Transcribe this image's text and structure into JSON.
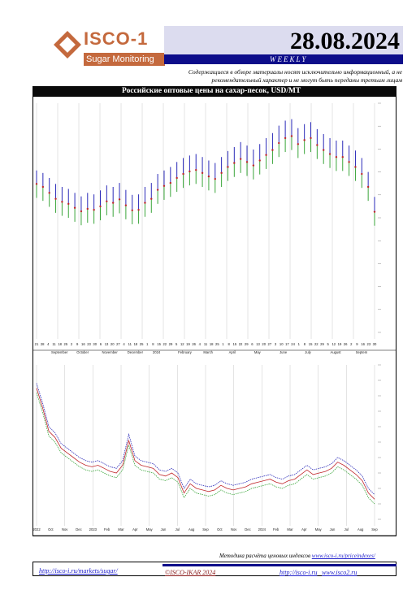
{
  "header": {
    "logo_main": "ISCO-1",
    "logo_sub": "Sugar Monitoring",
    "date": "28.08.2024",
    "frequency": "WEEKLY",
    "disclaimer": "Содержащиеся в обзоре материалы носят исключительно информационный, а не рекомендательный характер и не могут быть переданы третьим лицам"
  },
  "title": "Российские оптовые цены на сахар-песок, USD/MT",
  "footer": {
    "note_prefix": "Методика расчёта ценовых индексов",
    "note_link": "www.isco-i.ru/priceindexes/",
    "link1": "http://isco-i.ru/markets/sugar/",
    "copyright": "©ISCO-IKAR 2024",
    "link2": "http://isco-i.ru",
    "link3": "www.isco2.ru"
  },
  "colors": {
    "high": "#2a2ab8",
    "close": "#c0262a",
    "low": "#3aa53a",
    "header_blue": "#0d0d8a",
    "logo_orange": "#c4693d"
  },
  "chart_data": [
    {
      "type": "line",
      "title": "",
      "x_labels": [
        "21",
        "28",
        "4",
        "11",
        "18",
        "25",
        "2",
        "9",
        "16",
        "23",
        "30",
        "6",
        "13",
        "20",
        "27",
        "4",
        "11",
        "18",
        "25",
        "1",
        "8",
        "15",
        "22",
        "29",
        "5",
        "12",
        "19",
        "26",
        "4",
        "11",
        "18",
        "25",
        "1",
        "8",
        "15",
        "22",
        "29",
        "6",
        "13",
        "20",
        "27",
        "3",
        "10",
        "17",
        "24",
        "1",
        "8",
        "15",
        "22",
        "29",
        "5",
        "12",
        "19",
        "26",
        "2",
        "9",
        "16",
        "23",
        "30"
      ],
      "months": [
        "September",
        "October",
        "November",
        "December",
        "2024",
        "February",
        "March",
        "April",
        "May",
        "June",
        "July",
        "August",
        "Septem"
      ],
      "ylim": [
        520,
        980
      ],
      "series": [
        {
          "name": "",
          "values": [
            845,
            840,
            830,
            818,
            812,
            808,
            800,
            793,
            800,
            797,
            805,
            815,
            812,
            820,
            806,
            796,
            797,
            812,
            820,
            838,
            845,
            852,
            862,
            870,
            875,
            878,
            872,
            865,
            860,
            872,
            884,
            892,
            902,
            895,
            887,
            898,
            910,
            920,
            935,
            945,
            948,
            930,
            938,
            942,
            928,
            918,
            910,
            905,
            905,
            895,
            885,
            870,
            842,
            792
          ]
        },
        {
          "name": "",
          "values": [
            818,
            812,
            800,
            788,
            782,
            778,
            770,
            763,
            768,
            766,
            773,
            783,
            780,
            787,
            775,
            765,
            766,
            780,
            788,
            806,
            814,
            820,
            830,
            838,
            843,
            846,
            840,
            833,
            828,
            840,
            852,
            860,
            868,
            862,
            855,
            865,
            876,
            886,
            900,
            910,
            914,
            898,
            906,
            910,
            896,
            886,
            878,
            872,
            872,
            862,
            852,
            838,
            812,
            762
          ]
        },
        {
          "name": "",
          "values": [
            790,
            784,
            772,
            760,
            754,
            750,
            742,
            735,
            740,
            738,
            745,
            755,
            752,
            759,
            747,
            737,
            738,
            752,
            760,
            778,
            786,
            792,
            802,
            810,
            815,
            818,
            812,
            805,
            800,
            812,
            824,
            832,
            840,
            834,
            827,
            837,
            848,
            858,
            872,
            882,
            886,
            870,
            878,
            882,
            868,
            858,
            850,
            844,
            844,
            834,
            824,
            810,
            784,
            734
          ]
        }
      ]
    },
    {
      "type": "line",
      "title": "",
      "x_labels": [
        "2022",
        "Oct",
        "Nov",
        "Dec",
        "2023",
        "Feb",
        "Mar",
        "Apr",
        "May",
        "Jun",
        "Jul",
        "Aug",
        "Sep",
        "Oct",
        "Nov",
        "Dec",
        "2024",
        "Feb",
        "Mar",
        "Apr",
        "May",
        "Jun",
        "Jul",
        "Aug",
        "Sep"
      ],
      "ylim": [
        500,
        1500
      ],
      "series": [
        {
          "name": "",
          "values": [
            1380,
            1250,
            1100,
            1060,
            990,
            960,
            930,
            900,
            880,
            870,
            880,
            860,
            840,
            830,
            880,
            1050,
            910,
            880,
            870,
            860,
            820,
            810,
            830,
            800,
            700,
            760,
            730,
            720,
            710,
            720,
            750,
            730,
            720,
            730,
            740,
            760,
            770,
            780,
            790,
            770,
            760,
            780,
            790,
            820,
            850,
            820,
            830,
            840,
            860,
            900,
            880,
            850,
            820,
            780,
            700,
            660
          ]
        },
        {
          "name": "",
          "values": [
            1350,
            1220,
            1070,
            1030,
            960,
            930,
            900,
            870,
            850,
            840,
            850,
            830,
            810,
            800,
            850,
            1010,
            880,
            850,
            840,
            830,
            790,
            780,
            800,
            770,
            670,
            730,
            700,
            690,
            680,
            690,
            720,
            700,
            690,
            700,
            710,
            730,
            740,
            750,
            760,
            740,
            730,
            750,
            760,
            790,
            820,
            790,
            800,
            810,
            830,
            870,
            850,
            820,
            790,
            750,
            670,
            630
          ]
        },
        {
          "name": "",
          "values": [
            1320,
            1190,
            1040,
            1000,
            930,
            900,
            870,
            840,
            820,
            810,
            820,
            800,
            780,
            770,
            820,
            980,
            850,
            820,
            810,
            800,
            760,
            750,
            770,
            740,
            640,
            700,
            670,
            660,
            650,
            660,
            690,
            670,
            660,
            670,
            680,
            700,
            710,
            720,
            730,
            710,
            700,
            720,
            730,
            760,
            790,
            760,
            770,
            780,
            800,
            840,
            820,
            790,
            760,
            720,
            640,
            600
          ]
        }
      ]
    }
  ]
}
